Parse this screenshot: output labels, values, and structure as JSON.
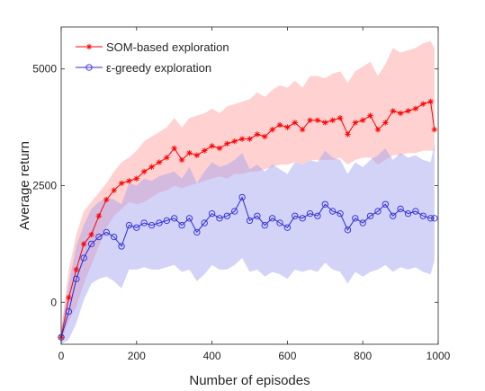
{
  "chart_data": {
    "type": "line",
    "title": "",
    "xlabel": "Number of episodes",
    "ylabel": "Average return",
    "xlim": [
      0,
      1000
    ],
    "ylim": [
      -900,
      5900
    ],
    "xticks": [
      0,
      200,
      400,
      600,
      800,
      1000
    ],
    "yticks": [
      0,
      2500,
      5000
    ],
    "grid": false,
    "legend_position": "top-left",
    "series": [
      {
        "name": "SOM-based exploration",
        "color": "#ff0000",
        "band_color": "#ff9a9a",
        "marker": "asterisk",
        "x": [
          0,
          20,
          40,
          60,
          80,
          100,
          120,
          140,
          160,
          180,
          200,
          220,
          240,
          260,
          280,
          300,
          320,
          340,
          360,
          380,
          400,
          420,
          440,
          460,
          480,
          500,
          520,
          540,
          560,
          580,
          600,
          620,
          640,
          660,
          680,
          700,
          720,
          740,
          760,
          780,
          800,
          820,
          840,
          860,
          880,
          900,
          920,
          940,
          960,
          980,
          990
        ],
        "values": [
          -750,
          100,
          700,
          1250,
          1450,
          1850,
          2200,
          2400,
          2550,
          2600,
          2650,
          2800,
          2900,
          3000,
          3100,
          3300,
          3050,
          3200,
          3150,
          3250,
          3350,
          3300,
          3400,
          3450,
          3500,
          3500,
          3600,
          3550,
          3700,
          3800,
          3750,
          3850,
          3700,
          3900,
          3900,
          3850,
          3900,
          3950,
          3600,
          3850,
          3900,
          4000,
          3700,
          3850,
          4100,
          4050,
          4100,
          4150,
          4250,
          4300,
          3700
        ],
        "lower": [
          -850,
          -400,
          -100,
          400,
          800,
          1200,
          1600,
          1850,
          2000,
          2150,
          2100,
          2150,
          2250,
          2350,
          2400,
          2500,
          2450,
          2500,
          2550,
          2600,
          2650,
          2700,
          2650,
          2750,
          2750,
          2800,
          2800,
          2850,
          2900,
          2950,
          2950,
          3000,
          2950,
          3050,
          3050,
          3050,
          3050,
          3100,
          2950,
          3050,
          3100,
          3100,
          2950,
          3050,
          3150,
          3150,
          3200,
          3200,
          3250,
          3250,
          3250
        ],
        "upper": [
          -600,
          700,
          1450,
          1950,
          2150,
          2350,
          2550,
          2800,
          3000,
          3100,
          3250,
          3450,
          3550,
          3650,
          3750,
          3950,
          3750,
          3950,
          4000,
          4050,
          4150,
          4050,
          4200,
          4250,
          4300,
          4350,
          4500,
          4400,
          4550,
          4650,
          4600,
          4750,
          4600,
          4850,
          4850,
          4800,
          4900,
          4950,
          4700,
          4950,
          5050,
          5150,
          4850,
          5100,
          5450,
          5350,
          5400,
          5450,
          5550,
          5600,
          5450
        ]
      },
      {
        "name": "ε-greedy exploration",
        "color": "#2b2bd6",
        "band_color": "#9d9dee",
        "marker": "circle",
        "x": [
          0,
          20,
          40,
          60,
          80,
          100,
          120,
          140,
          160,
          180,
          200,
          220,
          240,
          260,
          280,
          300,
          320,
          340,
          360,
          380,
          400,
          420,
          440,
          460,
          480,
          500,
          520,
          540,
          560,
          580,
          600,
          620,
          640,
          660,
          680,
          700,
          720,
          740,
          760,
          780,
          800,
          820,
          840,
          860,
          880,
          900,
          920,
          940,
          960,
          980,
          990
        ],
        "values": [
          -750,
          -200,
          500,
          950,
          1250,
          1400,
          1500,
          1400,
          1200,
          1650,
          1600,
          1700,
          1650,
          1700,
          1750,
          1800,
          1650,
          1800,
          1500,
          1700,
          1900,
          1800,
          1850,
          1950,
          2250,
          1750,
          1850,
          1650,
          1800,
          1700,
          1600,
          1850,
          1800,
          1900,
          1850,
          2100,
          1950,
          1900,
          1550,
          1800,
          1700,
          1850,
          1950,
          2100,
          1850,
          2000,
          1900,
          1950,
          1850,
          1800,
          1800
        ],
        "lower": [
          -900,
          -800,
          -450,
          50,
          400,
          500,
          550,
          450,
          300,
          700,
          700,
          750,
          700,
          700,
          750,
          800,
          650,
          700,
          450,
          600,
          800,
          700,
          700,
          800,
          950,
          650,
          700,
          550,
          650,
          600,
          500,
          700,
          650,
          700,
          650,
          850,
          700,
          650,
          400,
          650,
          550,
          650,
          700,
          800,
          650,
          750,
          700,
          750,
          650,
          600,
          900
        ],
        "upper": [
          -600,
          400,
          1200,
          1650,
          2000,
          2150,
          2250,
          2200,
          2100,
          2550,
          2500,
          2650,
          2600,
          2700,
          2750,
          2800,
          2650,
          2900,
          2550,
          2800,
          3000,
          2900,
          2950,
          3050,
          3200,
          2850,
          2950,
          2800,
          2950,
          2850,
          2750,
          3000,
          2950,
          3050,
          3000,
          3250,
          3100,
          3050,
          2750,
          3000,
          2900,
          3050,
          3150,
          3300,
          3050,
          3200,
          3100,
          3150,
          3050,
          3000,
          3400
        ]
      }
    ]
  }
}
